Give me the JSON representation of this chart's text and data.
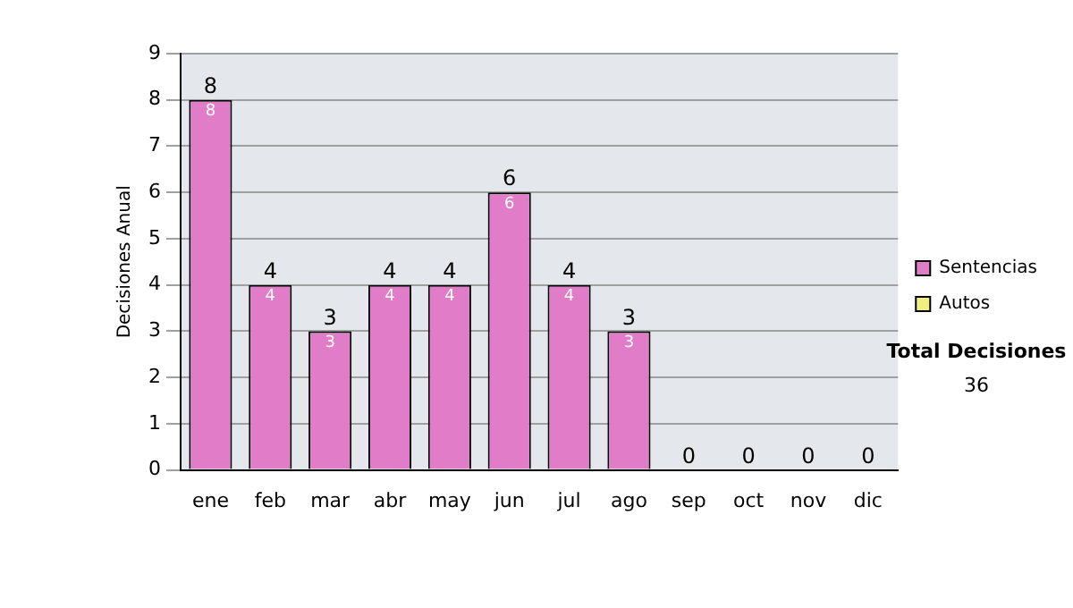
{
  "chart_data": {
    "type": "bar",
    "stacked": true,
    "ylabel": "Decisiones Anual",
    "categories": [
      "ene",
      "feb",
      "mar",
      "abr",
      "may",
      "jun",
      "jul",
      "ago",
      "sep",
      "oct",
      "nov",
      "dic"
    ],
    "series": [
      {
        "name": "Sentencias",
        "color": "#e07cc8",
        "values": [
          8,
          4,
          3,
          4,
          4,
          6,
          4,
          3,
          0,
          0,
          0,
          0
        ],
        "value_labels": [
          "8",
          "4",
          "3",
          "4",
          "4",
          "6",
          "4",
          "3",
          null,
          null,
          null,
          null
        ]
      },
      {
        "name": "Autos",
        "color": "#f0f080",
        "values": [
          0,
          0,
          0,
          0,
          0,
          0,
          0,
          0,
          0,
          0,
          0,
          0
        ]
      }
    ],
    "totals": [
      "8",
      "4",
      "3",
      "4",
      "4",
      "6",
      "4",
      "3",
      "0",
      "0",
      "0",
      "0"
    ],
    "ylim": [
      0,
      9
    ],
    "yticks": [
      0,
      1,
      2,
      3,
      4,
      5,
      6,
      7,
      8,
      9
    ],
    "grid": "y",
    "legend": "right",
    "annotations": [
      "Total Decisiones",
      "36"
    ]
  }
}
